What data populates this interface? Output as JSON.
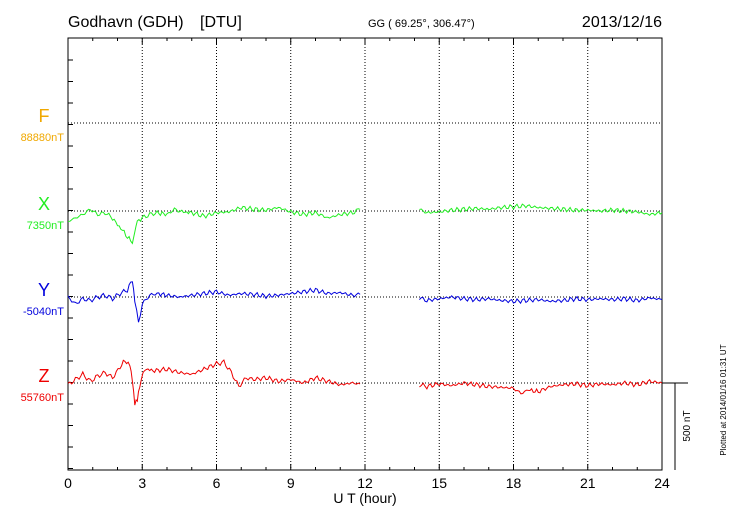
{
  "chart_data": {
    "type": "line",
    "station": "Godhavn (GDH)",
    "institute": "[DTU]",
    "coords": "GG ( 69.25°, 306.47°)",
    "date": "2013/12/16",
    "xlabel": "U T (hour)",
    "xlim": [
      0,
      24
    ],
    "xticks": [
      "0",
      "3",
      "6",
      "9",
      "12",
      "15",
      "18",
      "21",
      "24"
    ],
    "x_grid_hours": [
      3,
      6,
      9,
      12,
      15,
      18,
      21
    ],
    "scale_label": "500 nT",
    "plotted_note": "Plotted at 2014/01/16 01:31  UT",
    "gap_hours": [
      11.8,
      14.2
    ],
    "colors": {
      "F": "#f0a800",
      "X": "#22ee22",
      "Y": "#0000dd",
      "Z": "#ee0000"
    },
    "series": [
      {
        "name": "F",
        "baseline_label": "88880nT",
        "baseline_nT": 88880,
        "offset_nT": [
          [
            0,
            0
          ],
          [
            24,
            0
          ]
        ]
      },
      {
        "name": "X",
        "baseline_label": "7350nT",
        "baseline_nT": 7350,
        "offset_nT": [
          [
            0,
            -60
          ],
          [
            0.3,
            -40
          ],
          [
            0.6,
            -20
          ],
          [
            0.9,
            10
          ],
          [
            1.2,
            -20
          ],
          [
            1.5,
            -10
          ],
          [
            1.8,
            -40
          ],
          [
            2.0,
            -80
          ],
          [
            2.2,
            -110
          ],
          [
            2.4,
            -150
          ],
          [
            2.6,
            -180
          ],
          [
            2.7,
            -120
          ],
          [
            2.8,
            -60
          ],
          [
            3.0,
            -40
          ],
          [
            3.3,
            -20
          ],
          [
            3.6,
            -10
          ],
          [
            4.0,
            -20
          ],
          [
            4.3,
            10
          ],
          [
            4.6,
            -5
          ],
          [
            5.0,
            -10
          ],
          [
            5.5,
            -30
          ],
          [
            6.0,
            -10
          ],
          [
            6.5,
            -5
          ],
          [
            7.0,
            20
          ],
          [
            7.5,
            10
          ],
          [
            8.0,
            5
          ],
          [
            8.5,
            20
          ],
          [
            9.0,
            -5
          ],
          [
            9.5,
            -20
          ],
          [
            10.0,
            -10
          ],
          [
            10.5,
            -40
          ],
          [
            11.0,
            -20
          ],
          [
            11.5,
            -10
          ],
          [
            11.8,
            10
          ],
          [
            14.2,
            10
          ],
          [
            14.5,
            -10
          ],
          [
            15.0,
            -5
          ],
          [
            15.5,
            5
          ],
          [
            16.0,
            10
          ],
          [
            16.5,
            15
          ],
          [
            17.0,
            10
          ],
          [
            17.5,
            20
          ],
          [
            18.0,
            25
          ],
          [
            18.5,
            30
          ],
          [
            19.0,
            20
          ],
          [
            19.5,
            15
          ],
          [
            20.0,
            10
          ],
          [
            20.5,
            5
          ],
          [
            21.0,
            5
          ],
          [
            21.5,
            0
          ],
          [
            22.0,
            5
          ],
          [
            22.5,
            0
          ],
          [
            23.0,
            -5
          ],
          [
            23.5,
            -20
          ],
          [
            24.0,
            -10
          ]
        ]
      },
      {
        "name": "Y",
        "baseline_label": "-5040nT",
        "baseline_nT": -5040,
        "offset_nT": [
          [
            0,
            0
          ],
          [
            0.3,
            -40
          ],
          [
            0.6,
            -10
          ],
          [
            0.9,
            -20
          ],
          [
            1.2,
            0
          ],
          [
            1.5,
            10
          ],
          [
            1.8,
            -10
          ],
          [
            2.1,
            20
          ],
          [
            2.4,
            40
          ],
          [
            2.6,
            100
          ],
          [
            2.7,
            -20
          ],
          [
            2.85,
            -150
          ],
          [
            3.0,
            -40
          ],
          [
            3.3,
            10
          ],
          [
            3.6,
            20
          ],
          [
            4.0,
            10
          ],
          [
            4.5,
            0
          ],
          [
            5.0,
            10
          ],
          [
            5.5,
            20
          ],
          [
            6.0,
            30
          ],
          [
            6.5,
            10
          ],
          [
            7.0,
            20
          ],
          [
            7.5,
            15
          ],
          [
            8.0,
            5
          ],
          [
            8.5,
            10
          ],
          [
            9.0,
            20
          ],
          [
            9.5,
            30
          ],
          [
            10.0,
            40
          ],
          [
            10.5,
            20
          ],
          [
            11.0,
            25
          ],
          [
            11.5,
            10
          ],
          [
            11.8,
            15
          ],
          [
            14.2,
            -5
          ],
          [
            14.5,
            -20
          ],
          [
            15.0,
            -10
          ],
          [
            15.5,
            0
          ],
          [
            16.0,
            -10
          ],
          [
            16.5,
            -15
          ],
          [
            17.0,
            -10
          ],
          [
            17.5,
            -20
          ],
          [
            18.0,
            -25
          ],
          [
            18.5,
            -20
          ],
          [
            19.0,
            -15
          ],
          [
            19.5,
            -25
          ],
          [
            20.0,
            -20
          ],
          [
            20.5,
            -10
          ],
          [
            21.0,
            -15
          ],
          [
            21.5,
            -10
          ],
          [
            22.0,
            -15
          ],
          [
            22.5,
            -10
          ],
          [
            23.0,
            -20
          ],
          [
            23.5,
            -5
          ],
          [
            24.0,
            -15
          ]
        ]
      },
      {
        "name": "Z",
        "baseline_label": "55760nT",
        "baseline_nT": 55760,
        "offset_nT": [
          [
            0,
            -10
          ],
          [
            0.3,
            20
          ],
          [
            0.6,
            50
          ],
          [
            0.9,
            10
          ],
          [
            1.2,
            40
          ],
          [
            1.5,
            60
          ],
          [
            1.8,
            30
          ],
          [
            2.1,
            90
          ],
          [
            2.3,
            130
          ],
          [
            2.5,
            100
          ],
          [
            2.6,
            20
          ],
          [
            2.7,
            -120
          ],
          [
            2.8,
            -100
          ],
          [
            2.9,
            -10
          ],
          [
            3.1,
            80
          ],
          [
            3.5,
            70
          ],
          [
            4.0,
            80
          ],
          [
            4.5,
            60
          ],
          [
            5.0,
            50
          ],
          [
            5.5,
            80
          ],
          [
            6.0,
            110
          ],
          [
            6.3,
            120
          ],
          [
            6.6,
            60
          ],
          [
            6.9,
            -20
          ],
          [
            7.2,
            30
          ],
          [
            7.5,
            20
          ],
          [
            8.0,
            30
          ],
          [
            8.5,
            10
          ],
          [
            9.0,
            20
          ],
          [
            9.5,
            0
          ],
          [
            10.0,
            30
          ],
          [
            10.5,
            10
          ],
          [
            11.0,
            -10
          ],
          [
            11.5,
            0
          ],
          [
            11.8,
            -5
          ],
          [
            14.2,
            -10
          ],
          [
            14.5,
            -20
          ],
          [
            15.0,
            -5
          ],
          [
            15.5,
            -15
          ],
          [
            16.0,
            0
          ],
          [
            16.5,
            -10
          ],
          [
            17.0,
            -20
          ],
          [
            17.5,
            -25
          ],
          [
            18.0,
            -30
          ],
          [
            18.3,
            -60
          ],
          [
            18.6,
            -40
          ],
          [
            19.0,
            -50
          ],
          [
            19.5,
            -20
          ],
          [
            20.0,
            -10
          ],
          [
            20.5,
            -5
          ],
          [
            21.0,
            -15
          ],
          [
            21.5,
            -5
          ],
          [
            22.0,
            -10
          ],
          [
            22.5,
            0
          ],
          [
            23.0,
            -10
          ],
          [
            23.5,
            10
          ],
          [
            24.0,
            0
          ]
        ]
      }
    ]
  }
}
